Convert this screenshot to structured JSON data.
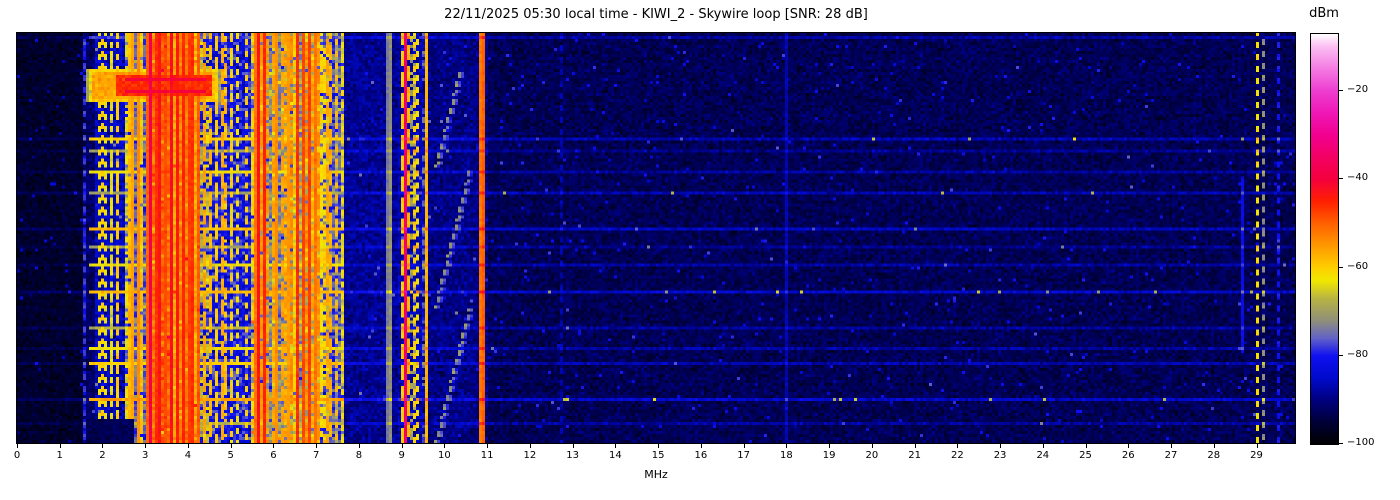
{
  "chart_data": {
    "type": "heatmap",
    "subtype": "radio-spectrogram-waterfall",
    "title": "22/11/2025 05:30 local time - KIWI_2 - Skywire loop [SNR: 28 dB]",
    "xlabel": "MHz",
    "x_range_mhz": [
      0,
      29.9
    ],
    "x_ticks": [
      "0",
      "1",
      "2",
      "3",
      "4",
      "5",
      "6",
      "7",
      "8",
      "9",
      "10",
      "11",
      "12",
      "13",
      "14",
      "15",
      "16",
      "17",
      "18",
      "19",
      "20",
      "21",
      "22",
      "23",
      "24",
      "25",
      "26",
      "27",
      "28",
      "29"
    ],
    "y_axis": "time (no ticks shown)",
    "grid": false,
    "colorbar": {
      "label": "dBm",
      "range": [
        -100,
        -7
      ],
      "ticks": [
        {
          "label": "−20",
          "value": -20
        },
        {
          "label": "−40",
          "value": -40
        },
        {
          "label": "−60",
          "value": -60
        },
        {
          "label": "−80",
          "value": -80
        },
        {
          "label": "−100",
          "value": -100
        }
      ],
      "stops": [
        [
          -100,
          "#000000"
        ],
        [
          -95,
          "#000038"
        ],
        [
          -90,
          "#000080"
        ],
        [
          -85,
          "#000acc"
        ],
        [
          -80,
          "#1010f0"
        ],
        [
          -76,
          "#6262c8"
        ],
        [
          -72,
          "#8f8f7a"
        ],
        [
          -67,
          "#b8b442"
        ],
        [
          -63,
          "#f0e800"
        ],
        [
          -60,
          "#ffcf00"
        ],
        [
          -55,
          "#ff9800"
        ],
        [
          -50,
          "#ff6000"
        ],
        [
          -45,
          "#ff2000"
        ],
        [
          -40,
          "#f5003c"
        ],
        [
          -35,
          "#f30063"
        ],
        [
          -30,
          "#f2008f"
        ],
        [
          -25,
          "#ef17b5"
        ],
        [
          -20,
          "#ee3ccf"
        ],
        [
          -15,
          "#f47ae2"
        ],
        [
          -10,
          "#fbbcf2"
        ],
        [
          -7,
          "#ffffff"
        ]
      ]
    },
    "noise_regions": [
      [
        0.0,
        1.55,
        -96,
        2.5
      ],
      [
        1.55,
        1.8,
        -92,
        3.5
      ],
      [
        1.8,
        2.55,
        -86,
        5
      ],
      [
        2.55,
        3.12,
        -76,
        7
      ],
      [
        3.12,
        4.3,
        -56,
        4
      ],
      [
        4.3,
        5.5,
        -81,
        7
      ],
      [
        5.5,
        6.4,
        -73,
        8
      ],
      [
        6.4,
        7.1,
        -69,
        8
      ],
      [
        7.1,
        7.62,
        -77,
        7
      ],
      [
        7.62,
        8.9,
        -89,
        3.5
      ],
      [
        8.9,
        9.6,
        -87,
        4
      ],
      [
        9.6,
        11.05,
        -90,
        3.5
      ],
      [
        11.05,
        29.9,
        -93,
        3.2
      ]
    ],
    "stripe_zones": [
      {
        "f": [
          1.55,
          1.78
        ],
        "density": 0.2,
        "boost": [
          8,
          16
        ],
        "duty": 0.4
      },
      {
        "f": [
          1.78,
          2.55
        ],
        "density": 0.3,
        "boost": [
          16,
          28
        ],
        "duty": 0.5
      },
      {
        "f": [
          2.55,
          3.12
        ],
        "density": 0.55,
        "boost": [
          10,
          24
        ],
        "duty": 0.7
      },
      {
        "f": [
          3.12,
          4.3
        ],
        "density": 0.65,
        "boost": [
          2,
          10
        ],
        "duty": 0.9
      },
      {
        "f": [
          4.3,
          5.5
        ],
        "density": 0.32,
        "boost": [
          12,
          24
        ],
        "duty": 0.55
      },
      {
        "f": [
          5.5,
          6.4
        ],
        "density": 0.5,
        "boost": [
          8,
          20
        ],
        "duty": 0.7
      },
      {
        "f": [
          6.4,
          7.1
        ],
        "density": 0.5,
        "boost": [
          8,
          18
        ],
        "duty": 0.75
      },
      {
        "f": [
          7.1,
          7.65
        ],
        "density": 0.4,
        "boost": [
          8,
          18
        ],
        "duty": 0.6
      },
      {
        "f": [
          8.9,
          9.6
        ],
        "density": 0.25,
        "boost": [
          8,
          20
        ],
        "duty": 0.4
      }
    ],
    "carriers": [
      {
        "f": 1.55,
        "level": -78,
        "style": "dotted"
      },
      {
        "f": 1.86,
        "level": -62,
        "style": "dotted"
      },
      {
        "f": 1.96,
        "level": -60,
        "style": "dotted"
      },
      {
        "f": 2.06,
        "level": -63,
        "style": "dotted"
      },
      {
        "f": 2.2,
        "level": -64,
        "style": "dotted"
      },
      {
        "f": 2.32,
        "level": -60,
        "style": "dotted"
      },
      {
        "f": 2.62,
        "level": -58,
        "style": "dashed"
      },
      {
        "f": 2.7,
        "level": -56,
        "style": "solid"
      },
      {
        "f": 2.78,
        "level": -54,
        "style": "solid"
      },
      {
        "f": 2.9,
        "level": -58,
        "style": "dashed"
      },
      {
        "f": 3.0,
        "level": -50,
        "style": "solid"
      },
      {
        "f": 3.08,
        "level": -38,
        "style": "solid"
      },
      {
        "f": 3.2,
        "level": -46,
        "style": "solid"
      },
      {
        "f": 3.33,
        "level": -43,
        "style": "solid"
      },
      {
        "f": 3.47,
        "level": -48,
        "style": "solid"
      },
      {
        "f": 3.6,
        "level": -42,
        "style": "solid"
      },
      {
        "f": 3.74,
        "level": -44,
        "style": "solid"
      },
      {
        "f": 3.88,
        "level": -45,
        "style": "solid"
      },
      {
        "f": 3.97,
        "level": -47,
        "style": "solid"
      },
      {
        "f": 4.08,
        "level": -46,
        "style": "solid"
      },
      {
        "f": 4.22,
        "level": -50,
        "style": "solid"
      },
      {
        "f": 4.36,
        "level": -56,
        "style": "dashed"
      },
      {
        "f": 4.5,
        "level": -58,
        "style": "dashed"
      },
      {
        "f": 4.65,
        "level": -60,
        "style": "dashed"
      },
      {
        "f": 4.8,
        "level": -57,
        "style": "dashed"
      },
      {
        "f": 4.95,
        "level": -60,
        "style": "dotted"
      },
      {
        "f": 5.1,
        "level": -62,
        "style": "dotted"
      },
      {
        "f": 5.3,
        "level": -60,
        "style": "dotted"
      },
      {
        "f": 5.57,
        "level": -52,
        "style": "solid"
      },
      {
        "f": 5.63,
        "level": -43,
        "style": "solid"
      },
      {
        "f": 5.7,
        "level": -55,
        "style": "dashed"
      },
      {
        "f": 5.76,
        "level": -45,
        "style": "solid"
      },
      {
        "f": 5.95,
        "level": -56,
        "style": "dashed"
      },
      {
        "f": 6.07,
        "level": -54,
        "style": "solid"
      },
      {
        "f": 6.18,
        "level": -56,
        "style": "dashed"
      },
      {
        "f": 6.3,
        "level": -55,
        "style": "solid"
      },
      {
        "f": 6.5,
        "level": -46,
        "style": "solid"
      },
      {
        "f": 6.64,
        "level": -48,
        "style": "solid"
      },
      {
        "f": 6.8,
        "level": -47,
        "style": "solid"
      },
      {
        "f": 6.92,
        "level": -52,
        "style": "solid"
      },
      {
        "f": 7.05,
        "level": -54,
        "style": "dashed"
      },
      {
        "f": 7.2,
        "level": -56,
        "style": "dashed"
      },
      {
        "f": 7.33,
        "level": -57,
        "style": "dashed"
      },
      {
        "f": 7.45,
        "level": -58,
        "style": "dotted"
      },
      {
        "f": 7.58,
        "level": -62,
        "style": "dotted"
      },
      {
        "f": 8.6,
        "level": -74,
        "style": "solid"
      },
      {
        "f": 8.7,
        "level": -72,
        "style": "solid"
      },
      {
        "f": 8.97,
        "level": -60,
        "style": "dashed"
      },
      {
        "f": 9.04,
        "level": -35,
        "style": "solid"
      },
      {
        "f": 9.13,
        "level": -58,
        "style": "dashed"
      },
      {
        "f": 9.25,
        "level": -60,
        "style": "dotted"
      },
      {
        "f": 9.33,
        "level": -62,
        "style": "dotted"
      },
      {
        "f": 9.57,
        "level": -58,
        "style": "solid"
      },
      {
        "f": 10.79,
        "level": -52,
        "style": "solid"
      },
      {
        "f": 10.9,
        "level": -50,
        "style": "solid"
      },
      {
        "f": 12.72,
        "level": -87,
        "style": "dotted"
      },
      {
        "f": 18.0,
        "level": -87,
        "style": "solid"
      },
      {
        "f": 28.65,
        "level": -82,
        "style": "solid",
        "rows": [
          0.35,
          0.78
        ]
      },
      {
        "f": 28.96,
        "level": -62,
        "style": "dotted"
      },
      {
        "f": 29.16,
        "level": -72,
        "style": "dotted"
      },
      {
        "f": 29.5,
        "level": -80,
        "style": "dotted"
      }
    ],
    "streaks": [
      {
        "t": 0.004,
        "a": -78,
        "q": 5,
        "d": false
      },
      {
        "t": 0.26,
        "a": -60,
        "q": 6,
        "d": true
      },
      {
        "t": 0.285,
        "a": -70,
        "q": 4,
        "d": false
      },
      {
        "t": 0.335,
        "a": -63,
        "q": 5,
        "d": false
      },
      {
        "t": 0.39,
        "a": -70,
        "q": 6,
        "d": true
      },
      {
        "t": 0.48,
        "a": -58,
        "q": 7,
        "d": false
      },
      {
        "t": 0.525,
        "a": -70,
        "q": 4,
        "d": false
      },
      {
        "t": 0.565,
        "a": -63,
        "q": 5,
        "d": false
      },
      {
        "t": 0.63,
        "a": -58,
        "q": 8,
        "d": true
      },
      {
        "t": 0.72,
        "a": -68,
        "q": 5,
        "d": false
      },
      {
        "t": 0.775,
        "a": -63,
        "q": 5,
        "d": false
      },
      {
        "t": 0.81,
        "a": -60,
        "q": 6,
        "d": false
      },
      {
        "t": 0.9,
        "a": -56,
        "q": 8,
        "d": true
      },
      {
        "t": 0.956,
        "a": -68,
        "q": 5,
        "d": false
      }
    ],
    "burst": {
      "rows": [
        0.085,
        0.165
      ],
      "outer": {
        "f": [
          1.62,
          4.75
        ],
        "level": -56
      },
      "inner": {
        "rows": [
          0.1,
          0.15
        ],
        "f": [
          2.35,
          4.55
        ],
        "level": -46
      },
      "core_rows": [
        0.112,
        0.14
      ],
      "core": {
        "f": [
          2.5,
          4.4
        ],
        "level": -40
      }
    },
    "ionosonde": {
      "rows": [
        0.1,
        1.0
      ],
      "f_top": 10.55,
      "span": 0.8,
      "period_rows": 46,
      "level": -72,
      "duty": 0.66
    },
    "quiet_patch": {
      "rows": [
        0.94,
        1.0
      ],
      "f": [
        1.6,
        2.75
      ],
      "level": -93
    },
    "render": {
      "cols": 426,
      "rows": 137,
      "seed": 1337
    }
  }
}
